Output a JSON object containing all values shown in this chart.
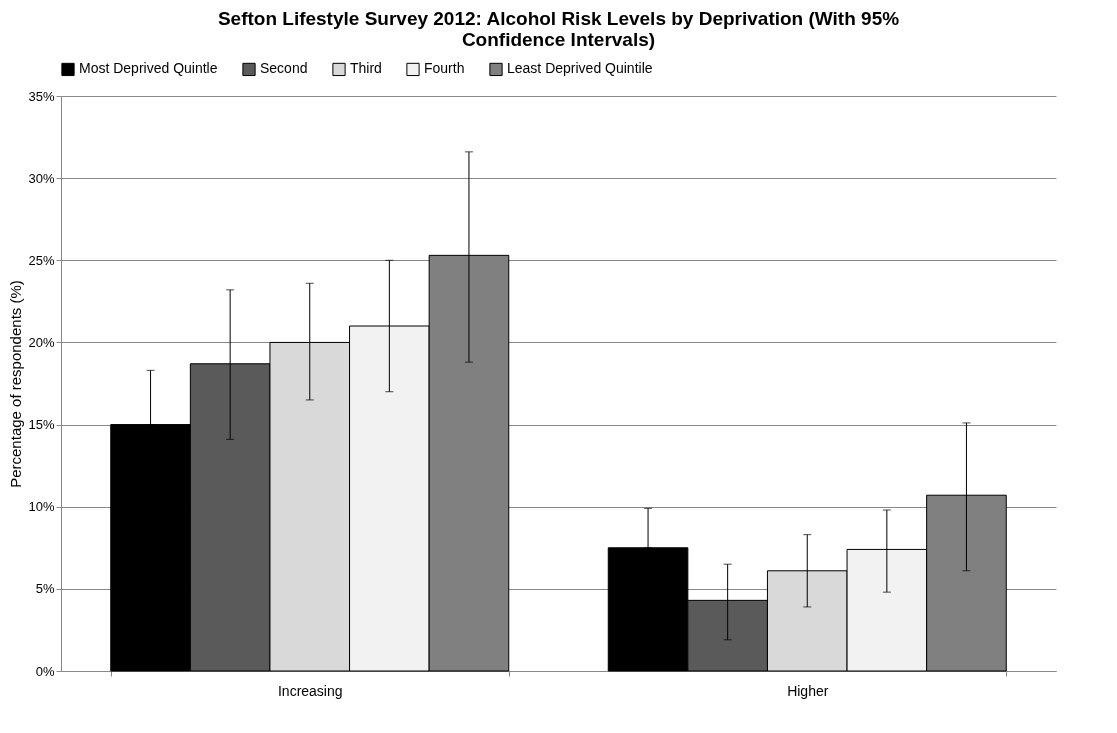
{
  "chart_data": {
    "type": "bar",
    "title": "Sefton Lifestyle Survey 2012: Alcohol Risk Levels by Deprivation (With 95% Confidence Intervals)",
    "ylabel": "Percentage of respondents (%)",
    "categories": [
      "Increasing",
      "Higher"
    ],
    "series": [
      {
        "name": "Most Deprived Quintle",
        "color": "#000000",
        "values": [
          15.0,
          7.5
        ],
        "errors": [
          [
            15.0,
            18.3
          ],
          [
            7.5,
            9.9
          ]
        ]
      },
      {
        "name": "Second",
        "color": "#5a5a5a",
        "values": [
          18.7,
          4.3
        ],
        "errors": [
          [
            14.1,
            23.2
          ],
          [
            1.9,
            6.5
          ]
        ]
      },
      {
        "name": "Third",
        "color": "#d9d9d9",
        "values": [
          20.0,
          6.1
        ],
        "errors": [
          [
            16.5,
            23.6
          ],
          [
            3.9,
            8.3
          ]
        ]
      },
      {
        "name": "Fourth",
        "color": "#f2f2f2",
        "values": [
          21.0,
          7.4
        ],
        "errors": [
          [
            17.0,
            25.0
          ],
          [
            4.8,
            9.8
          ]
        ]
      },
      {
        "name": "Least Deprived Quintile",
        "color": "#808080",
        "values": [
          25.3,
          10.7
        ],
        "errors": [
          [
            18.8,
            31.6
          ],
          [
            6.1,
            15.1
          ]
        ]
      }
    ],
    "ylim": [
      0,
      35
    ],
    "yticks": [
      {
        "value": 0,
        "label": "0%"
      },
      {
        "value": 5,
        "label": "5%"
      },
      {
        "value": 10,
        "label": "10%"
      },
      {
        "value": 15,
        "label": "15%"
      },
      {
        "value": 20,
        "label": "20%"
      },
      {
        "value": 25,
        "label": "25%"
      },
      {
        "value": 30,
        "label": "30%"
      },
      {
        "value": 35,
        "label": "35%"
      }
    ],
    "grid": "y",
    "legend": "top"
  }
}
